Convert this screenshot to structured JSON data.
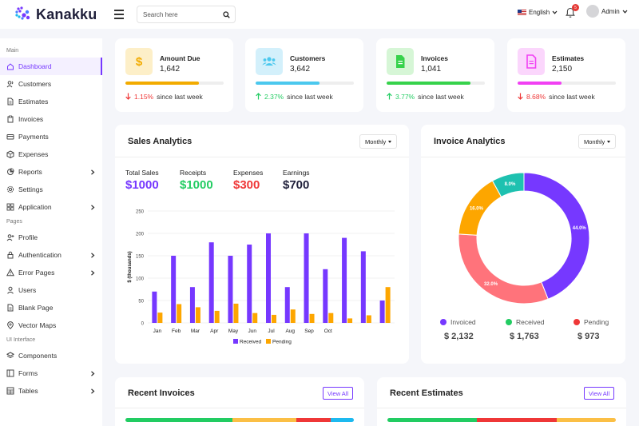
{
  "app": {
    "brand": "Kanakku"
  },
  "header": {
    "search_placeholder": "Search here",
    "language": "English",
    "notification_count": "5",
    "user_name": "Admin"
  },
  "sidebar": {
    "sections": [
      {
        "heading": "Main",
        "items": [
          {
            "label": "Dashboard",
            "icon": "home-icon",
            "active": true,
            "submenu": false
          },
          {
            "label": "Customers",
            "icon": "users-icon",
            "submenu": false
          },
          {
            "label": "Estimates",
            "icon": "file-icon",
            "submenu": false
          },
          {
            "label": "Invoices",
            "icon": "clipboard-icon",
            "submenu": false
          },
          {
            "label": "Payments",
            "icon": "credit-card-icon",
            "submenu": false
          },
          {
            "label": "Expenses",
            "icon": "package-icon",
            "submenu": false
          },
          {
            "label": "Reports",
            "icon": "pie-chart-icon",
            "submenu": true
          },
          {
            "label": "Settings",
            "icon": "settings-icon",
            "submenu": false
          },
          {
            "label": "Application",
            "icon": "grid-icon",
            "submenu": true
          }
        ]
      },
      {
        "heading": "Pages",
        "items": [
          {
            "label": "Profile",
            "icon": "user-plus-icon",
            "submenu": false
          },
          {
            "label": "Authentication",
            "icon": "lock-icon",
            "submenu": true
          },
          {
            "label": "Error Pages",
            "icon": "alert-icon",
            "submenu": true
          },
          {
            "label": "Users",
            "icon": "user-icon",
            "submenu": false
          },
          {
            "label": "Blank Page",
            "icon": "file-icon",
            "submenu": false
          },
          {
            "label": "Vector Maps",
            "icon": "map-pin-icon",
            "submenu": false
          }
        ]
      },
      {
        "heading": "UI Interface",
        "items": [
          {
            "label": "Components",
            "icon": "layers-icon",
            "submenu": false
          },
          {
            "label": "Forms",
            "icon": "sidebar-icon",
            "submenu": true
          },
          {
            "label": "Tables",
            "icon": "table-icon",
            "submenu": true
          }
        ]
      }
    ]
  },
  "stats": [
    {
      "label": "Amount Due",
      "value": "1,642",
      "change": "1.15%",
      "direction": "down",
      "since": "since last week",
      "icon": "dollar-icon",
      "color": "#f2ab00",
      "bg": "#fdefc8",
      "progress": 0.75
    },
    {
      "label": "Customers",
      "value": "3,642",
      "change": "2.37%",
      "direction": "up",
      "since": "since last week",
      "icon": "users-icon",
      "color": "#4bc8ee",
      "bg": "#d3f0fb",
      "progress": 0.65
    },
    {
      "label": "Invoices",
      "value": "1,041",
      "change": "3.77%",
      "direction": "up",
      "since": "since last week",
      "icon": "file-icon",
      "color": "#36d24b",
      "bg": "#d6f6d6",
      "progress": 0.85
    },
    {
      "label": "Estimates",
      "value": "2,150",
      "change": "8.68%",
      "direction": "down",
      "since": "since last week",
      "icon": "file-alt-icon",
      "color": "#f140f3",
      "bg": "#fbd6fc",
      "progress": 0.45
    }
  ],
  "sales": {
    "title": "Sales Analytics",
    "period": "Monthly",
    "metrics": [
      {
        "label": "Total Sales",
        "value": "$1000",
        "color": "#7638ff"
      },
      {
        "label": "Receipts",
        "value": "$1000",
        "color": "#22cc62"
      },
      {
        "label": "Expenses",
        "value": "$300",
        "color": "#ef3737"
      },
      {
        "label": "Earnings",
        "value": "$700",
        "color": "#1f1f3a"
      }
    ]
  },
  "invoice_analytics": {
    "title": "Invoice Analytics",
    "period": "Monthly",
    "legend": [
      {
        "label": "Invoiced",
        "amount": "$ 2,132",
        "color": "#7638ff"
      },
      {
        "label": "Received",
        "amount": "$ 1,763",
        "color": "#22cc62"
      },
      {
        "label": "Pending",
        "amount": "$ 973",
        "color": "#ef3737"
      }
    ]
  },
  "recent_invoices": {
    "title": "Recent Invoices",
    "view_all": "View All",
    "bar": [
      {
        "fraction": 0.47,
        "color": "#22cc62"
      },
      {
        "fraction": 0.28,
        "color": "#fbbf45"
      },
      {
        "fraction": 0.15,
        "color": "#ef3737"
      },
      {
        "fraction": 0.1,
        "color": "#1db9ef"
      }
    ]
  },
  "recent_estimates": {
    "title": "Recent Estimates",
    "view_all": "View All",
    "bar": [
      {
        "fraction": 0.39,
        "color": "#22cc62"
      },
      {
        "fraction": 0.35,
        "color": "#ef3737"
      },
      {
        "fraction": 0.26,
        "color": "#fbbf45"
      }
    ]
  },
  "chart_data": [
    {
      "type": "bar",
      "ylabel": "$ (thousands)",
      "ylim": [
        0,
        250
      ],
      "yticks": [
        0,
        50,
        100,
        150,
        200,
        250
      ],
      "categories": [
        "Jan",
        "Feb",
        "Mar",
        "Apr",
        "May",
        "Jun",
        "Jul",
        "Aug",
        "Sep",
        "Oct",
        "",
        "",
        ""
      ],
      "series": [
        {
          "name": "Received",
          "color": "#7638ff",
          "values": [
            70,
            150,
            80,
            180,
            150,
            175,
            200,
            80,
            200,
            120,
            190,
            160,
            50
          ]
        },
        {
          "name": "Pending",
          "color": "#fda600",
          "values": [
            23,
            42,
            35,
            27,
            43,
            22,
            18,
            30,
            20,
            22,
            10,
            17,
            80
          ]
        }
      ],
      "legend": "bottom",
      "grid": true
    },
    {
      "type": "pie",
      "style": "donut",
      "slices": [
        {
          "label": "44.0%",
          "value": 44.0,
          "color": "#7638ff"
        },
        {
          "label": "32.0%",
          "value": 32.0,
          "color": "#ff737b"
        },
        {
          "label": "16.0%",
          "value": 16.0,
          "color": "#fda600"
        },
        {
          "label": "8.0%",
          "value": 8.0,
          "color": "#1ec1b0"
        }
      ]
    }
  ]
}
